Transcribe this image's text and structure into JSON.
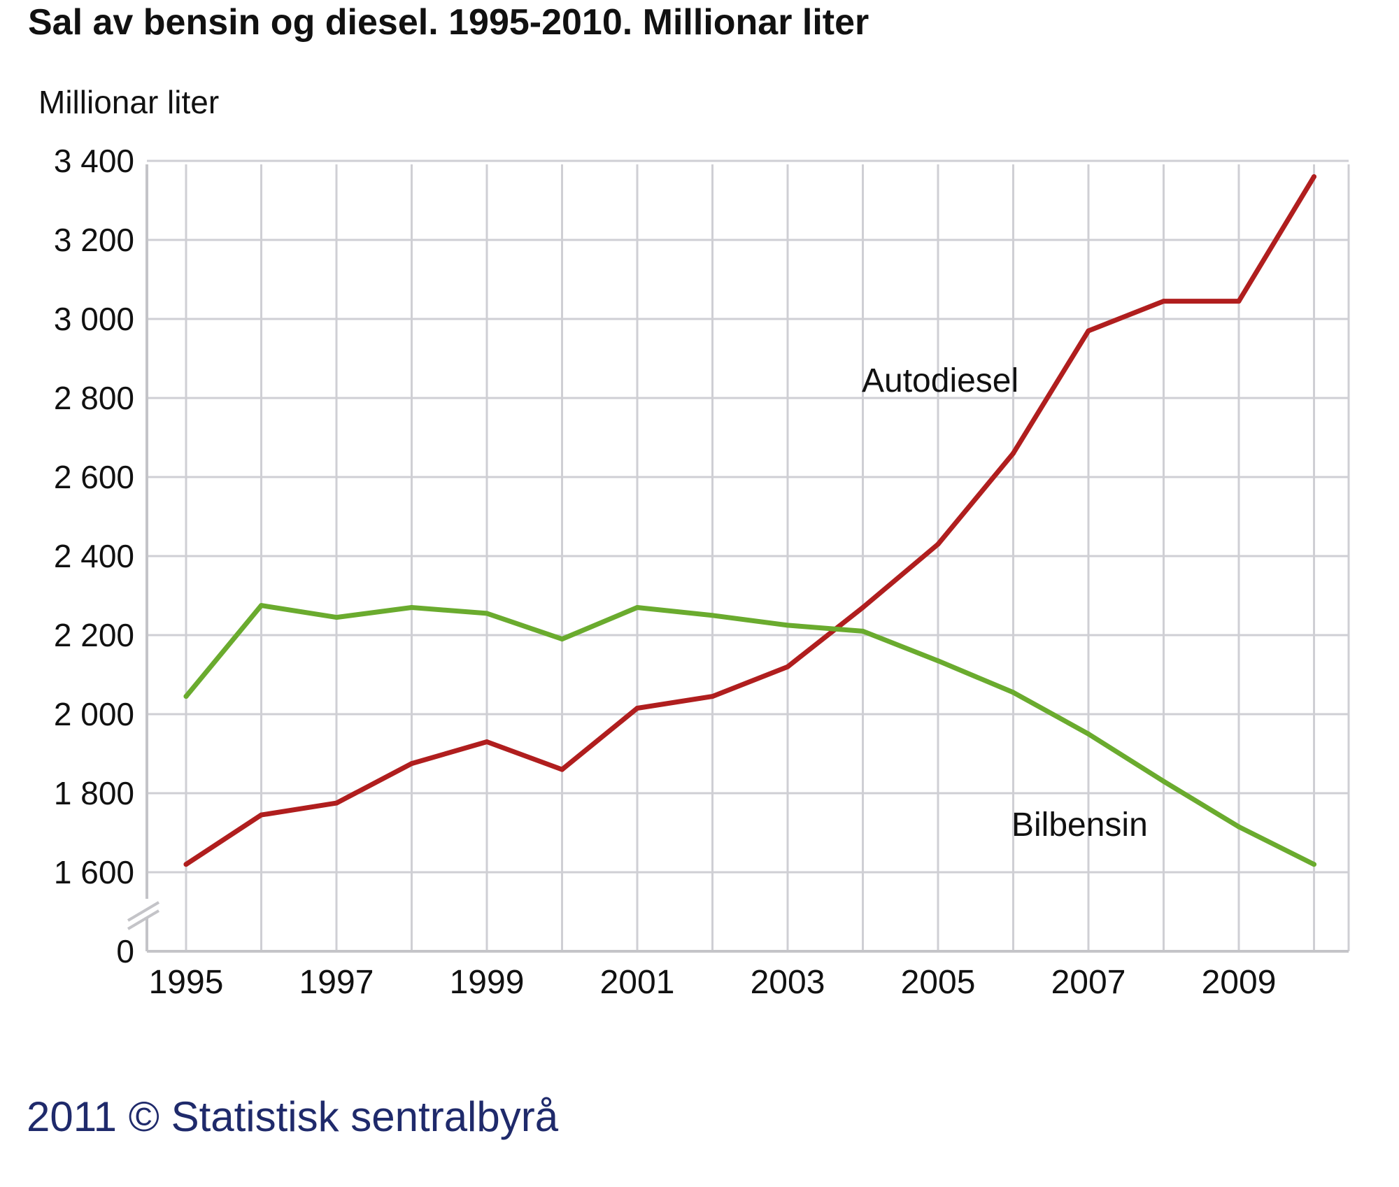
{
  "title": "Sal av bensin og diesel. 1995-2010. Millionar liter",
  "copyright": "2011 © Statistisk sentralbyrå",
  "colors": {
    "Autodiesel": "#b01e1e",
    "Bilbensin": "#6aab2e",
    "grid": "#cfcfd4",
    "axis": "#c4c4c8"
  },
  "chart_data": {
    "type": "line",
    "ylabel": "Millionar liter",
    "xlabel": "",
    "x": [
      1995,
      1996,
      1997,
      1998,
      1999,
      2000,
      2001,
      2002,
      2003,
      2004,
      2005,
      2006,
      2007,
      2008,
      2009,
      2010
    ],
    "x_tick_labels": [
      "1995",
      "1997",
      "1999",
      "2001",
      "2003",
      "2005",
      "2007",
      "2009"
    ],
    "y_tick_labels": [
      "0",
      "1 600",
      "1 800",
      "2 000",
      "2 200",
      "2 400",
      "2 600",
      "2 800",
      "3 000",
      "3 200",
      "3 400"
    ],
    "y_ticks": [
      1600,
      1800,
      2000,
      2200,
      2400,
      2600,
      2800,
      3000,
      3200,
      3400
    ],
    "ylim": [
      1400,
      3400
    ],
    "y_axis_break": true,
    "grid": true,
    "series": [
      {
        "name": "Autodiesel",
        "values": [
          1620,
          1745,
          1775,
          1875,
          1930,
          1860,
          2015,
          2045,
          2120,
          2270,
          2430,
          2660,
          2970,
          3045,
          3045,
          3360
        ]
      },
      {
        "name": "Bilbensin",
        "values": [
          2045,
          2275,
          2245,
          2270,
          2255,
          2190,
          2270,
          2250,
          2225,
          2210,
          2135,
          2055,
          1950,
          1830,
          1715,
          1620
        ]
      }
    ]
  }
}
